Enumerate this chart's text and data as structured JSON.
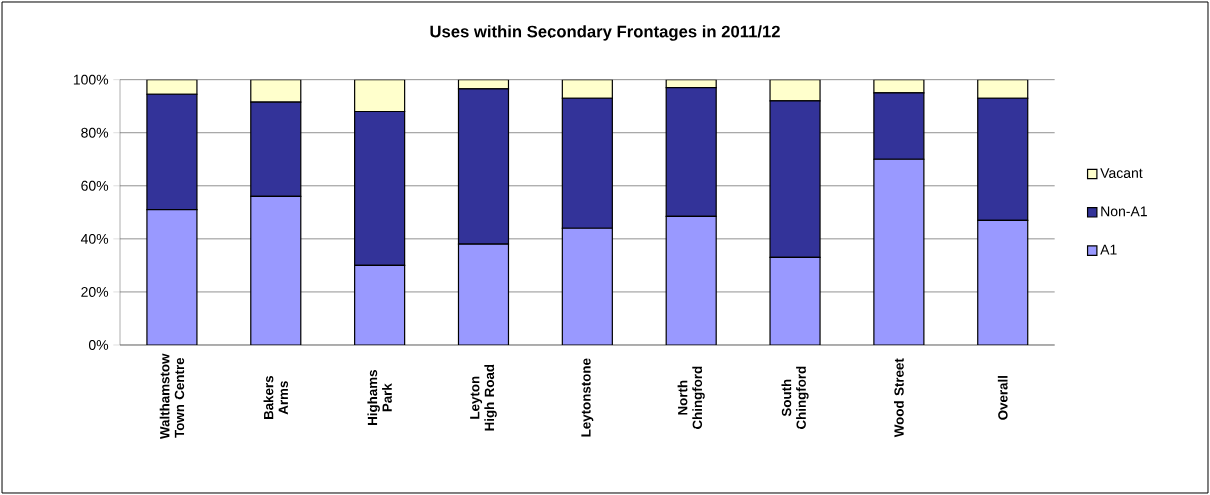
{
  "chart_data": {
    "type": "bar",
    "stacked": true,
    "title": "Uses within Secondary Frontages in 2011/12",
    "categories": [
      "Walthamstow Town Centre",
      "Bakers Arms",
      "Highams Park",
      "Leyton High Road",
      "Leytonstone",
      "North Chingford",
      "South Chingford",
      "Wood Street",
      "Overall"
    ],
    "series": [
      {
        "name": "A1",
        "color": "#9999ff",
        "values": [
          51,
          56,
          30,
          38,
          44,
          48.5,
          33,
          70,
          47
        ]
      },
      {
        "name": "Non-A1",
        "color": "#333399",
        "values": [
          43.5,
          35.5,
          58,
          58.5,
          49,
          48.5,
          59,
          25,
          46
        ]
      },
      {
        "name": "Vacant",
        "color": "#ffffcc",
        "values": [
          5.5,
          8.5,
          12,
          3.5,
          7,
          3,
          8,
          5,
          7
        ]
      }
    ],
    "ylim": [
      0,
      100
    ],
    "yticks": [
      {
        "value": 0,
        "label": "0%"
      },
      {
        "value": 20,
        "label": "20%"
      },
      {
        "value": 40,
        "label": "40%"
      },
      {
        "value": 60,
        "label": "60%"
      },
      {
        "value": 80,
        "label": "80%"
      },
      {
        "value": 100,
        "label": "100%"
      }
    ],
    "grid": "y",
    "legend": "right"
  }
}
